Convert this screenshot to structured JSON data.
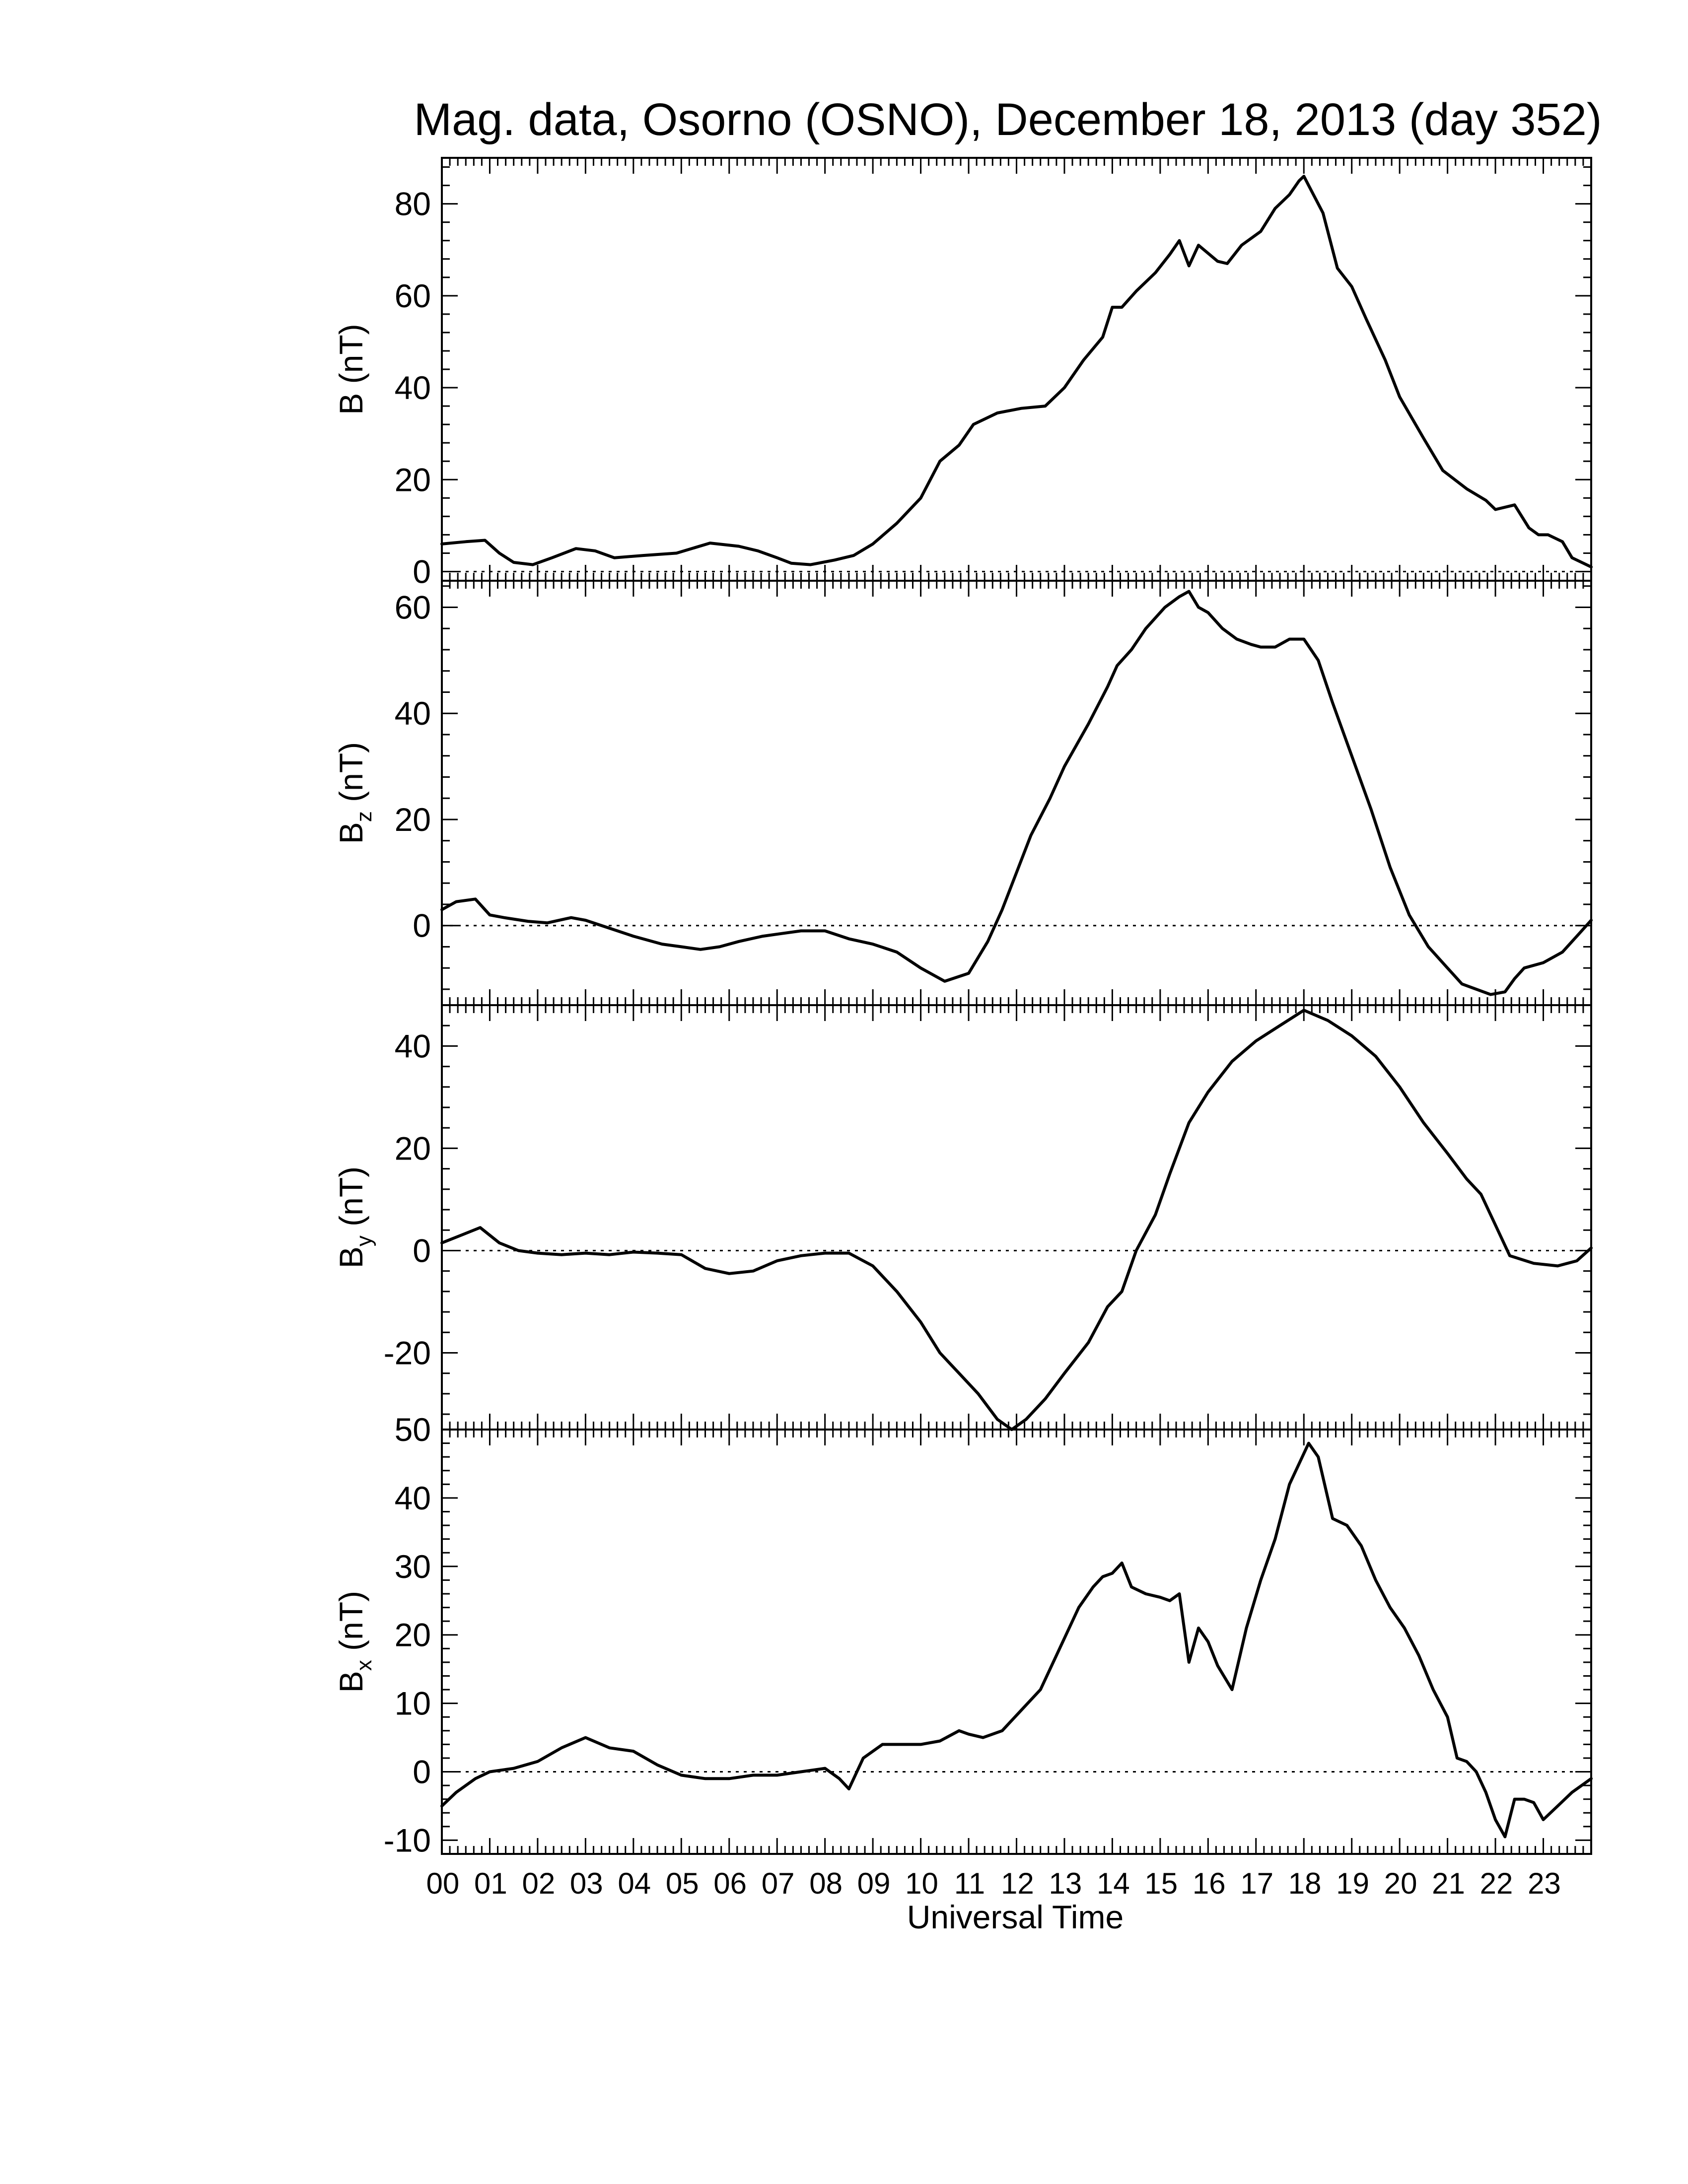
{
  "figure": {
    "title": "Mag. data, Osorno (OSNO), December 18, 2013 (day 352)",
    "xlabel": "Universal Time"
  },
  "chart_data": [
    {
      "type": "line",
      "panel": "B",
      "ylabel": "B (nT)",
      "ylabel_main": "B",
      "ylabel_sub": "",
      "ylabel_unit": "(nT)",
      "xlim": [
        0,
        24
      ],
      "ylim": [
        -2,
        90
      ],
      "yticks": [
        0,
        20,
        40,
        60,
        80
      ],
      "ytick_labels": [
        "0",
        "20",
        "40",
        "60",
        "80"
      ],
      "zero_line": true,
      "series": [
        {
          "x": [
            0,
            0.5,
            0.9,
            1.2,
            1.5,
            1.9,
            2.3,
            2.8,
            3.2,
            3.6,
            4.2,
            4.9,
            5.6,
            6.2,
            6.6,
            7.0,
            7.3,
            7.7,
            8.2,
            8.6,
            9.0,
            9.5,
            10.0,
            10.4,
            10.8,
            11.1,
            11.6,
            12.1,
            12.6,
            13.0,
            13.4,
            13.8,
            14.0,
            14.2,
            14.5,
            14.9,
            15.2,
            15.4,
            15.6,
            15.8,
            16.2,
            16.4,
            16.7,
            17.1,
            17.4,
            17.7,
            17.9,
            18.0,
            18.1,
            18.4,
            18.7,
            19.0,
            19.3,
            19.7,
            20.0,
            20.5,
            20.9,
            21.4,
            21.8,
            22.0,
            22.4,
            22.7,
            22.9,
            23.1,
            23.4,
            23.6,
            24.0
          ],
          "values": [
            6,
            6.5,
            6.8,
            4,
            2,
            1.5,
            3,
            5,
            4.5,
            3,
            3.5,
            4,
            6.2,
            5.5,
            4.5,
            3,
            1.8,
            1.5,
            2.5,
            3.5,
            6,
            10.5,
            16,
            24,
            27.5,
            32,
            34.5,
            35.5,
            36,
            40,
            46,
            51,
            57.5,
            57.5,
            61,
            65,
            69,
            72,
            66.5,
            71,
            67.5,
            67,
            71,
            74,
            79,
            82,
            85,
            86,
            84,
            78,
            66,
            62,
            55,
            46,
            38,
            29,
            22,
            18,
            15.5,
            13.5,
            14.5,
            9.5,
            8,
            8,
            6.5,
            3,
            1
          ]
        }
      ]
    },
    {
      "type": "line",
      "panel": "Bz",
      "ylabel": "Bz (nT)",
      "ylabel_main": "B",
      "ylabel_sub": "z",
      "ylabel_unit": "(nT)",
      "xlim": [
        0,
        24
      ],
      "ylim": [
        -15,
        65
      ],
      "yticks": [
        0,
        20,
        40,
        60
      ],
      "ytick_labels": [
        "0",
        "20",
        "40",
        "60"
      ],
      "zero_line": true,
      "series": [
        {
          "x": [
            0,
            0.3,
            0.7,
            1.0,
            1.3,
            1.8,
            2.2,
            2.7,
            3.0,
            3.5,
            4.0,
            4.6,
            5.0,
            5.4,
            5.8,
            6.2,
            6.7,
            7.1,
            7.5,
            8.0,
            8.5,
            9.0,
            9.5,
            10.0,
            10.5,
            11.0,
            11.4,
            11.7,
            12.0,
            12.3,
            12.7,
            13.0,
            13.5,
            13.9,
            14.1,
            14.4,
            14.7,
            15.1,
            15.4,
            15.6,
            15.8,
            16.0,
            16.3,
            16.6,
            16.9,
            17.1,
            17.4,
            17.7,
            18.0,
            18.3,
            18.6,
            19.0,
            19.4,
            19.8,
            20.2,
            20.6,
            21.0,
            21.3,
            21.6,
            21.9,
            22.2,
            22.4,
            22.6,
            23.0,
            23.4,
            23.7,
            24.0
          ],
          "values": [
            3,
            4.5,
            5,
            2,
            1.5,
            0.8,
            0.5,
            1.5,
            1,
            -0.5,
            -2,
            -3.5,
            -4,
            -4.5,
            -4,
            -3,
            -2,
            -1.5,
            -1,
            -1,
            -2.5,
            -3.5,
            -5,
            -8,
            -10.5,
            -9,
            -3,
            3,
            10,
            17,
            24,
            30,
            38,
            45,
            49,
            52,
            56,
            60,
            62,
            63,
            60,
            59,
            56,
            54,
            53,
            52.5,
            52.5,
            54,
            54,
            50,
            42,
            32,
            22,
            11,
            2,
            -4,
            -8,
            -11,
            -12,
            -13,
            -12.5,
            -10,
            -8,
            -7,
            -5,
            -2,
            1
          ]
        }
      ]
    },
    {
      "type": "line",
      "panel": "By",
      "ylabel": "By (nT)",
      "ylabel_main": "B",
      "ylabel_sub": "y",
      "ylabel_unit": "(nT)",
      "xlim": [
        0,
        24
      ],
      "ylim": [
        -35,
        48
      ],
      "yticks": [
        -20,
        0,
        20,
        40
      ],
      "ytick_labels": [
        "-20",
        "0",
        "20",
        "40"
      ],
      "zero_line": true,
      "series": [
        {
          "x": [
            0,
            0.4,
            0.8,
            1.2,
            1.6,
            2.0,
            2.5,
            3.0,
            3.5,
            4.0,
            4.5,
            5.0,
            5.5,
            6.0,
            6.5,
            7.0,
            7.5,
            8.0,
            8.5,
            9.0,
            9.5,
            10.0,
            10.4,
            10.8,
            11.2,
            11.6,
            11.9,
            12.2,
            12.6,
            13.0,
            13.5,
            13.9,
            14.2,
            14.5,
            14.9,
            15.2,
            15.6,
            16.0,
            16.5,
            17.0,
            17.5,
            18.0,
            18.5,
            19.0,
            19.5,
            20.0,
            20.5,
            21.0,
            21.4,
            21.7,
            22.0,
            22.3,
            22.8,
            23.3,
            23.7,
            24.0
          ],
          "values": [
            1.5,
            3,
            4.5,
            1.5,
            0,
            -0.5,
            -0.8,
            -0.5,
            -0.8,
            -0.3,
            -0.5,
            -0.8,
            -3.5,
            -4.5,
            -4,
            -2,
            -1,
            -0.5,
            -0.5,
            -3,
            -8,
            -14,
            -20,
            -24,
            -28,
            -33,
            -35,
            -33,
            -29,
            -24,
            -18,
            -11,
            -8,
            0,
            7,
            15,
            25,
            31,
            37,
            41,
            44,
            47,
            45,
            42,
            38,
            32,
            25,
            19,
            14,
            11,
            5,
            -1,
            -2.5,
            -3,
            -2,
            0.5
          ]
        }
      ]
    },
    {
      "type": "line",
      "panel": "Bx",
      "ylabel": "Bx (nT)",
      "ylabel_main": "B",
      "ylabel_sub": "x",
      "ylabel_unit": "(nT)",
      "xlim": [
        0,
        24
      ],
      "ylim": [
        -12,
        50
      ],
      "yticks": [
        -10,
        0,
        10,
        20,
        30,
        40,
        50
      ],
      "ytick_labels": [
        "-10",
        "0",
        "10",
        "20",
        "30",
        "40",
        "50"
      ],
      "zero_line": true,
      "series": [
        {
          "x": [
            0,
            0.3,
            0.7,
            1.0,
            1.5,
            2.0,
            2.5,
            3.0,
            3.5,
            4.0,
            4.5,
            5.0,
            5.5,
            6.0,
            6.5,
            7.0,
            7.5,
            8.0,
            8.3,
            8.5,
            8.8,
            9.2,
            9.6,
            10.0,
            10.4,
            10.8,
            11.0,
            11.3,
            11.7,
            12.1,
            12.5,
            12.9,
            13.3,
            13.6,
            13.8,
            14.0,
            14.2,
            14.4,
            14.7,
            15.0,
            15.2,
            15.4,
            15.6,
            15.8,
            16.0,
            16.2,
            16.5,
            16.8,
            17.1,
            17.4,
            17.7,
            17.9,
            18.1,
            18.3,
            18.6,
            18.9,
            19.2,
            19.5,
            19.8,
            20.1,
            20.4,
            20.7,
            21.0,
            21.2,
            21.4,
            21.6,
            21.8,
            22.0,
            22.2,
            22.4,
            22.6,
            22.8,
            23.0,
            23.3,
            23.6,
            24.0
          ],
          "values": [
            -5,
            -3,
            -1,
            0,
            0.5,
            1.5,
            3.5,
            5,
            3.5,
            3,
            1,
            -0.5,
            -1,
            -1,
            -0.5,
            -0.5,
            0,
            0.5,
            -1,
            -2.5,
            2,
            4,
            4,
            4,
            4.5,
            6,
            5.5,
            5,
            6,
            9,
            12,
            18,
            24,
            27,
            28.5,
            29,
            30.5,
            27,
            26,
            25.5,
            25,
            26,
            16,
            21,
            19,
            15.5,
            12,
            21,
            28,
            34,
            42,
            45,
            48,
            46,
            37,
            36,
            33,
            28,
            24,
            21,
            17,
            12,
            8,
            2,
            1.5,
            0,
            -3,
            -7,
            -9.5,
            -4,
            -4,
            -4.5,
            -7,
            -5,
            -3,
            -1
          ]
        }
      ]
    }
  ],
  "x_axis": {
    "ticks": [
      0,
      1,
      2,
      3,
      4,
      5,
      6,
      7,
      8,
      9,
      10,
      11,
      12,
      13,
      14,
      15,
      16,
      17,
      18,
      19,
      20,
      21,
      22,
      23
    ],
    "tick_labels": [
      "00",
      "01",
      "02",
      "03",
      "04",
      "05",
      "06",
      "07",
      "08",
      "09",
      "10",
      "11",
      "12",
      "13",
      "14",
      "15",
      "16",
      "17",
      "18",
      "19",
      "20",
      "21",
      "22",
      "23"
    ]
  }
}
